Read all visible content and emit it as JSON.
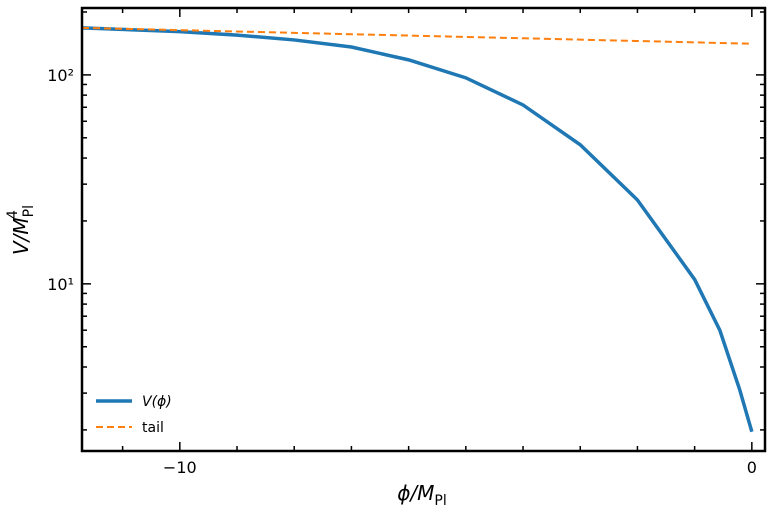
{
  "chart_data": {
    "type": "line",
    "xlabel": {
      "main": "ϕ/M",
      "sub": "Pl"
    },
    "ylabel": {
      "main": "V/M",
      "sub": "Pl",
      "sup": "4"
    },
    "xlim": [
      -11.71,
      0.23
    ],
    "ylim": [
      1.585,
      209
    ],
    "log_y": true,
    "xticks": [
      {
        "value": -10,
        "label": "−10"
      },
      0
    ],
    "xticks_minor": [
      -11,
      -9,
      -8,
      -7,
      -6,
      -5,
      -4,
      -3,
      -2,
      -1
    ],
    "yticks": [
      {
        "value": 10,
        "label": "10¹"
      },
      {
        "value": 100,
        "label": "10²"
      }
    ],
    "yticks_minor": [
      2,
      3,
      4,
      5,
      6,
      7,
      8,
      9,
      20,
      30,
      40,
      50,
      60,
      70,
      80,
      90,
      200
    ],
    "legend": "lower left",
    "series": [
      {
        "name": "V(ϕ)",
        "color": "#1f77b4",
        "dash": false,
        "x": [
          -11.71,
          -10,
          -9,
          -8,
          -7,
          -6,
          -5,
          -4,
          -3,
          -2,
          -1,
          -0.56,
          -0.21,
          0
        ],
        "values": [
          168,
          161,
          155,
          147,
          136,
          118,
          96.8,
          71.8,
          46.3,
          25.2,
          10.5,
          6.0,
          3.1,
          1.96
        ]
      },
      {
        "name": "tail",
        "color": "#ff7f0e",
        "dash": true,
        "x": [
          -11.71,
          0
        ],
        "values": [
          168,
          141
        ]
      }
    ]
  }
}
